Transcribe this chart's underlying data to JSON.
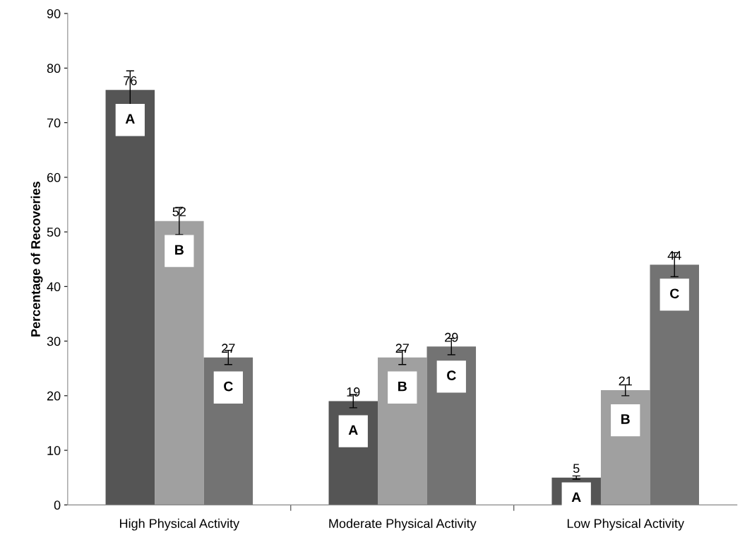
{
  "chart_data": {
    "type": "bar",
    "ylabel": "Percentage of Recoveries",
    "categories": [
      "High Physical Activity",
      "Moderate Physical Activity",
      "Low Physical Activity"
    ],
    "series": [
      {
        "name": "A",
        "color": "#555555",
        "values": [
          76,
          19,
          5
        ],
        "errors": [
          3.5,
          1.2,
          0.3
        ]
      },
      {
        "name": "B",
        "color": "#a0a0a0",
        "values": [
          52,
          27,
          21
        ],
        "errors": [
          2.5,
          1.3,
          1
        ]
      },
      {
        "name": "C",
        "color": "#737373",
        "values": [
          27,
          29,
          44
        ],
        "errors": [
          1.3,
          1.5,
          2.2
        ]
      }
    ],
    "ylim": [
      0,
      90
    ],
    "yticks": [
      0,
      10,
      20,
      30,
      40,
      50,
      60,
      70,
      80,
      90
    ],
    "data_labels": true,
    "grid": false,
    "legend": false
  }
}
